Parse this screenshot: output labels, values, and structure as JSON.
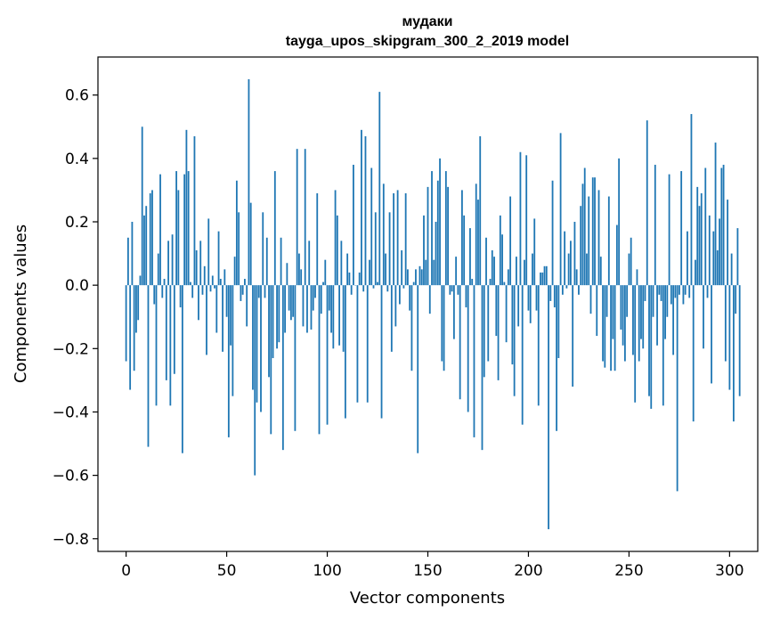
{
  "chart_data": {
    "type": "bar",
    "title_lines": [
      "мудаки",
      "tayga_upos_skipgram_300_2_2019 model"
    ],
    "xlabel": "Vector components",
    "ylabel": "Components values",
    "xlim": [
      -14,
      314
    ],
    "ylim": [
      -0.84,
      0.72
    ],
    "xticks": [
      0,
      50,
      100,
      150,
      200,
      250,
      300
    ],
    "yticks": [
      -0.8,
      -0.6,
      -0.4,
      -0.2,
      0.0,
      0.2,
      0.4,
      0.6
    ],
    "ytick_labels": [
      "−0.8",
      "−0.6",
      "−0.4",
      "−0.2",
      "0.0",
      "0.2",
      "0.4",
      "0.6"
    ],
    "bar_color": "#1f77b4",
    "grid": false,
    "values": [
      -0.24,
      0.15,
      -0.33,
      0.2,
      -0.27,
      -0.15,
      -0.11,
      0.03,
      0.5,
      0.22,
      0.25,
      -0.51,
      0.29,
      0.3,
      -0.06,
      -0.38,
      0.1,
      0.35,
      -0.04,
      0.02,
      -0.3,
      0.14,
      -0.38,
      0.16,
      -0.28,
      0.36,
      0.3,
      -0.07,
      -0.53,
      0.35,
      0.49,
      0.36,
      0.01,
      -0.04,
      0.47,
      0.11,
      -0.11,
      0.14,
      -0.03,
      0.06,
      -0.22,
      0.21,
      -0.02,
      0.03,
      -0.01,
      -0.15,
      0.17,
      0.02,
      -0.21,
      0.05,
      -0.1,
      -0.48,
      -0.19,
      -0.35,
      0.09,
      0.33,
      0.23,
      -0.05,
      -0.03,
      0.02,
      -0.13,
      0.65,
      0.26,
      -0.33,
      -0.6,
      -0.37,
      -0.04,
      -0.4,
      0.23,
      -0.04,
      0.15,
      -0.29,
      -0.47,
      -0.23,
      0.36,
      -0.2,
      -0.18,
      0.15,
      -0.52,
      -0.15,
      0.07,
      -0.08,
      -0.11,
      -0.1,
      -0.46,
      0.43,
      0.1,
      0.05,
      -0.13,
      0.43,
      -0.15,
      0.14,
      -0.14,
      -0.08,
      -0.04,
      0.29,
      -0.47,
      -0.09,
      0.01,
      0.08,
      -0.44,
      -0.08,
      -0.15,
      -0.2,
      0.3,
      0.22,
      -0.19,
      0.14,
      -0.21,
      -0.42,
      0.1,
      0.04,
      -0.03,
      0.38,
      0.0,
      -0.37,
      0.04,
      0.49,
      -0.02,
      0.47,
      -0.37,
      0.08,
      0.37,
      -0.01,
      0.23,
      0.01,
      0.61,
      -0.42,
      0.32,
      0.1,
      -0.02,
      0.23,
      -0.21,
      0.29,
      -0.13,
      0.3,
      -0.06,
      0.11,
      -0.01,
      0.29,
      0.05,
      -0.08,
      -0.27,
      0.01,
      0.05,
      -0.53,
      0.06,
      0.05,
      0.22,
      0.08,
      0.31,
      -0.09,
      0.36,
      0.08,
      0.2,
      0.33,
      0.4,
      -0.24,
      -0.27,
      0.36,
      0.31,
      -0.03,
      -0.02,
      -0.17,
      0.09,
      -0.03,
      -0.36,
      0.3,
      0.22,
      -0.07,
      -0.4,
      0.18,
      0.02,
      -0.48,
      0.32,
      0.27,
      0.47,
      -0.52,
      -0.29,
      0.15,
      -0.24,
      0.02,
      0.11,
      0.09,
      -0.16,
      -0.3,
      0.22,
      0.16,
      0.01,
      -0.18,
      0.05,
      0.28,
      -0.25,
      -0.35,
      0.09,
      -0.13,
      0.42,
      -0.44,
      0.08,
      0.41,
      -0.08,
      -0.12,
      0.1,
      0.21,
      -0.08,
      -0.38,
      0.04,
      0.04,
      0.06,
      0.06,
      -0.77,
      -0.05,
      0.33,
      -0.07,
      -0.46,
      -0.23,
      0.48,
      -0.03,
      0.17,
      -0.01,
      0.1,
      0.14,
      -0.32,
      0.2,
      0.05,
      -0.03,
      0.25,
      0.32,
      0.37,
      0.1,
      0.28,
      -0.09,
      0.34,
      0.34,
      -0.16,
      0.3,
      0.09,
      -0.24,
      -0.26,
      -0.1,
      0.28,
      -0.27,
      -0.17,
      -0.27,
      0.19,
      0.4,
      -0.14,
      -0.19,
      -0.24,
      -0.1,
      0.1,
      0.15,
      -0.22,
      -0.37,
      0.05,
      -0.24,
      -0.17,
      -0.2,
      -0.05,
      0.52,
      -0.35,
      -0.39,
      -0.1,
      0.38,
      -0.19,
      -0.03,
      -0.05,
      -0.38,
      -0.17,
      -0.1,
      0.35,
      -0.06,
      -0.22,
      -0.04,
      -0.65,
      -0.03,
      0.36,
      -0.06,
      -0.03,
      0.17,
      -0.04,
      0.54,
      -0.43,
      0.08,
      0.31,
      0.25,
      0.29,
      -0.2,
      0.37,
      -0.04,
      0.22,
      -0.31,
      0.17,
      0.45,
      0.11,
      0.21,
      0.37,
      0.38,
      -0.24,
      0.27,
      -0.33,
      0.1,
      -0.43,
      -0.09,
      0.18,
      -0.35
    ]
  }
}
